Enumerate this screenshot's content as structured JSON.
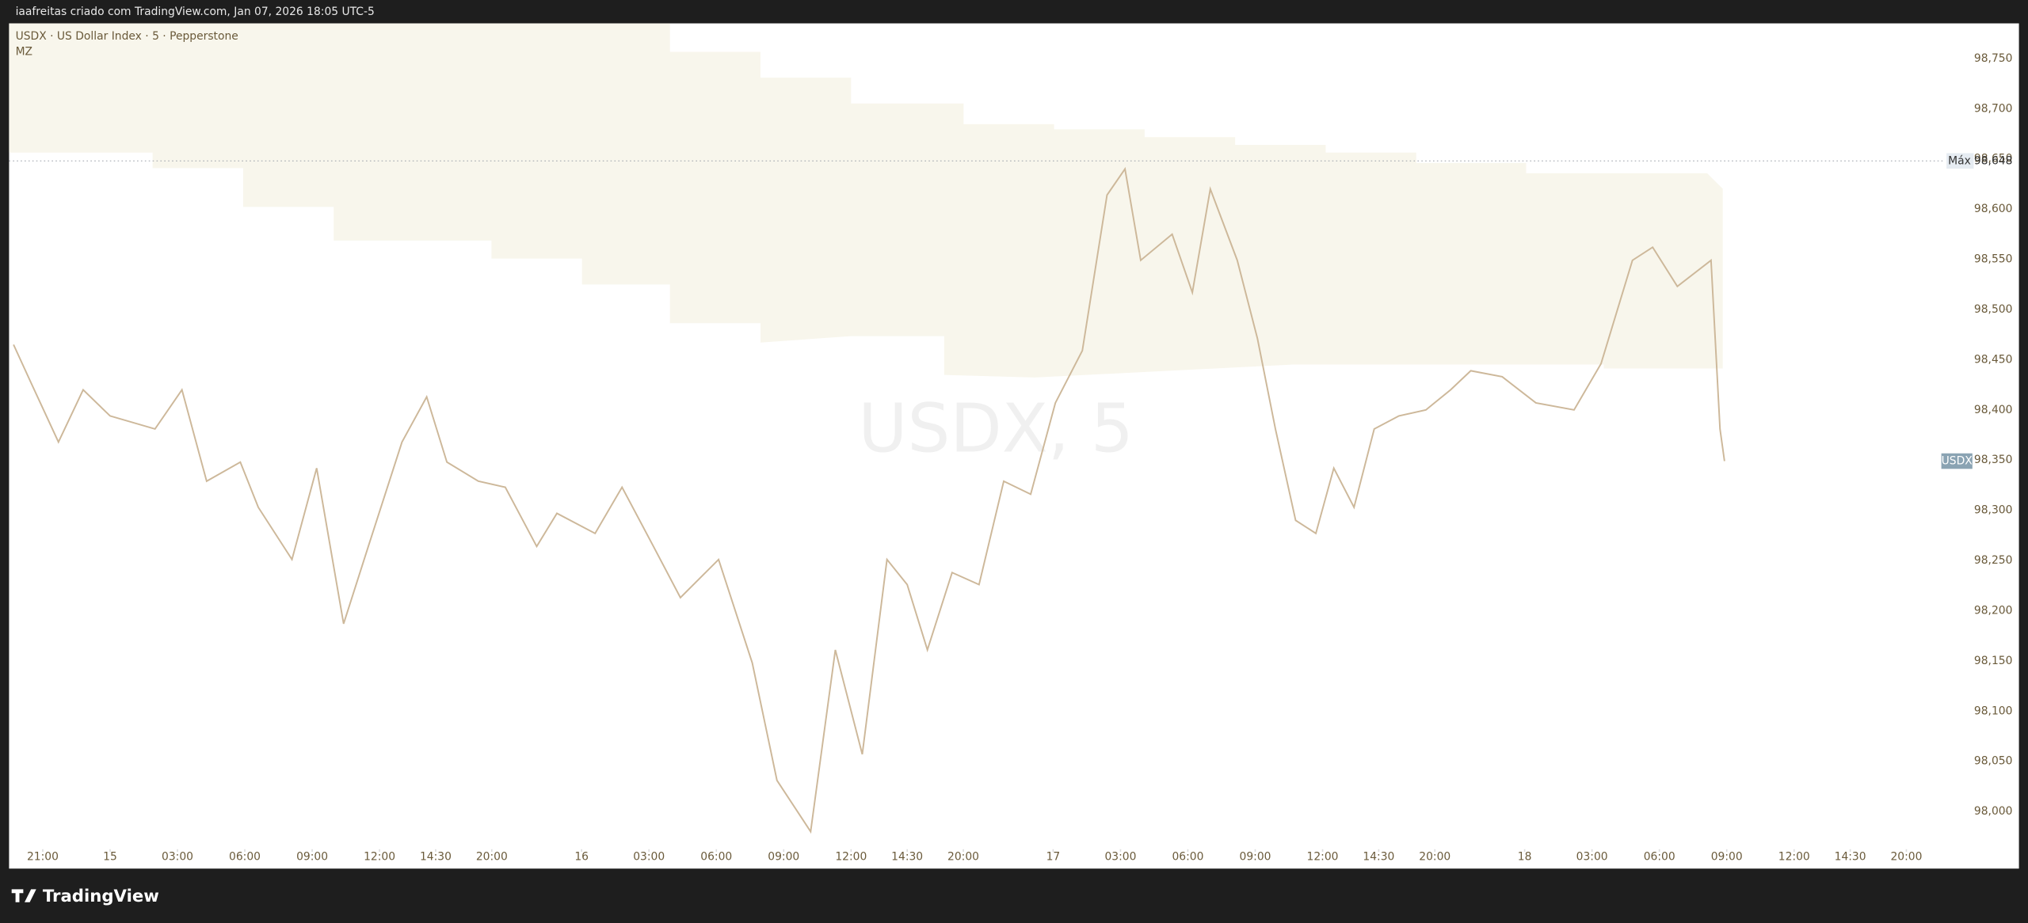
{
  "header": "iaafreitas criado com TradingView.com, Jan 07, 2026 18:05 UTC-5",
  "footer": {
    "brand": "TradingView"
  },
  "chart_data": {
    "type": "line",
    "title": "USDX · US Dollar Index · 5 · Pepperstone",
    "indicator": "MZ",
    "watermark": "USDX, 5",
    "x": [
      0.2,
      1.0,
      2.2,
      3.3,
      4.5,
      6.5,
      7.7,
      8.8,
      10.3,
      11.1,
      12.6,
      13.7,
      14.9,
      16.0,
      17.5,
      18.6,
      19.5,
      20.9,
      22.1,
      23.5,
      24.4,
      26.1,
      27.3,
      28.7,
      29.9,
      31.6,
      33.1,
      34.2,
      35.7,
      36.8,
      38.0,
      39.1,
      40.0,
      40.9,
      42.0,
      43.2,
      44.3,
      45.5,
      46.6,
      47.8,
      48.9,
      49.7,
      50.4,
      51.8,
      52.7,
      53.5,
      54.7,
      55.6,
      56.4,
      57.3,
      58.2,
      59.0,
      59.9,
      60.8,
      61.9,
      63.1,
      64.2,
      65.1,
      66.5,
      68.0,
      69.7,
      70.9,
      72.3,
      73.2,
      74.3,
      75.8,
      76.2,
      76.4
    ],
    "series": [
      {
        "name": "USDX",
        "color": "#cdb89a",
        "values": [
          98465,
          98426,
          98368,
          98420,
          98394,
          98381,
          98420,
          98329,
          98348,
          98303,
          98251,
          98342,
          98187,
          98264,
          98368,
          98413,
          98348,
          98329,
          98323,
          98264,
          98297,
          98277,
          98323,
          98264,
          98213,
          98251,
          98148,
          98031,
          97980,
          98161,
          98057,
          98251,
          98226,
          98161,
          98238,
          98226,
          98329,
          98316,
          98407,
          98459,
          98614,
          98640,
          98549,
          98575,
          98517,
          98620,
          98549,
          98471,
          98381,
          98290,
          98277,
          98342,
          98303,
          98381,
          98394,
          98400,
          98420,
          98439,
          98433,
          98407,
          98400,
          98446,
          98549,
          98562,
          98523,
          98549,
          98381,
          98349
        ]
      }
    ],
    "xlim": [
      0,
      86
    ],
    "xticks": [
      {
        "value": 1.5,
        "label": "21:00"
      },
      {
        "value": 4.5,
        "label": "15"
      },
      {
        "value": 7.5,
        "label": "03:00"
      },
      {
        "value": 10.5,
        "label": "06:00"
      },
      {
        "value": 13.5,
        "label": "09:00"
      },
      {
        "value": 16.5,
        "label": "12:00"
      },
      {
        "value": 19,
        "label": "14:30"
      },
      {
        "value": 21.5,
        "label": "20:00"
      },
      {
        "value": 25.5,
        "label": "16"
      },
      {
        "value": 28.5,
        "label": "03:00"
      },
      {
        "value": 31.5,
        "label": "06:00"
      },
      {
        "value": 34.5,
        "label": "09:00"
      },
      {
        "value": 37.5,
        "label": "12:00"
      },
      {
        "value": 40,
        "label": "14:30"
      },
      {
        "value": 42.5,
        "label": "20:00"
      },
      {
        "value": 46.5,
        "label": "17"
      },
      {
        "value": 49.5,
        "label": "03:00"
      },
      {
        "value": 52.5,
        "label": "06:00"
      },
      {
        "value": 55.5,
        "label": "09:00"
      },
      {
        "value": 58.5,
        "label": "12:00"
      },
      {
        "value": 61,
        "label": "14:30"
      },
      {
        "value": 63.5,
        "label": "20:00"
      },
      {
        "value": 67.5,
        "label": "18"
      },
      {
        "value": 70.5,
        "label": "03:00"
      },
      {
        "value": 73.5,
        "label": "06:00"
      },
      {
        "value": 76.5,
        "label": "09:00"
      },
      {
        "value": 79.5,
        "label": "12:00"
      },
      {
        "value": 82,
        "label": "14:30"
      },
      {
        "value": 84.5,
        "label": "20:00"
      }
    ],
    "ylim": [
      97965,
      98785
    ],
    "yticks": [
      {
        "value": 98000,
        "label": "98,000"
      },
      {
        "value": 98050,
        "label": "98,050"
      },
      {
        "value": 98100,
        "label": "98,100"
      },
      {
        "value": 98150,
        "label": "98,150"
      },
      {
        "value": 98200,
        "label": "98,200"
      },
      {
        "value": 98250,
        "label": "98,250"
      },
      {
        "value": 98300,
        "label": "98,300"
      },
      {
        "value": 98350,
        "label": "98,350"
      },
      {
        "value": 98400,
        "label": "98,400"
      },
      {
        "value": 98450,
        "label": "98,450"
      },
      {
        "value": 98500,
        "label": "98,500"
      },
      {
        "value": 98550,
        "label": "98,550"
      },
      {
        "value": 98600,
        "label": "98,600"
      },
      {
        "value": 98650,
        "label": "98,650"
      },
      {
        "value": 98700,
        "label": "98,700"
      },
      {
        "value": 98750,
        "label": "98,750"
      }
    ],
    "max_line": {
      "label": "Máx",
      "value": 98648,
      "value_label": "98,648"
    }
  }
}
